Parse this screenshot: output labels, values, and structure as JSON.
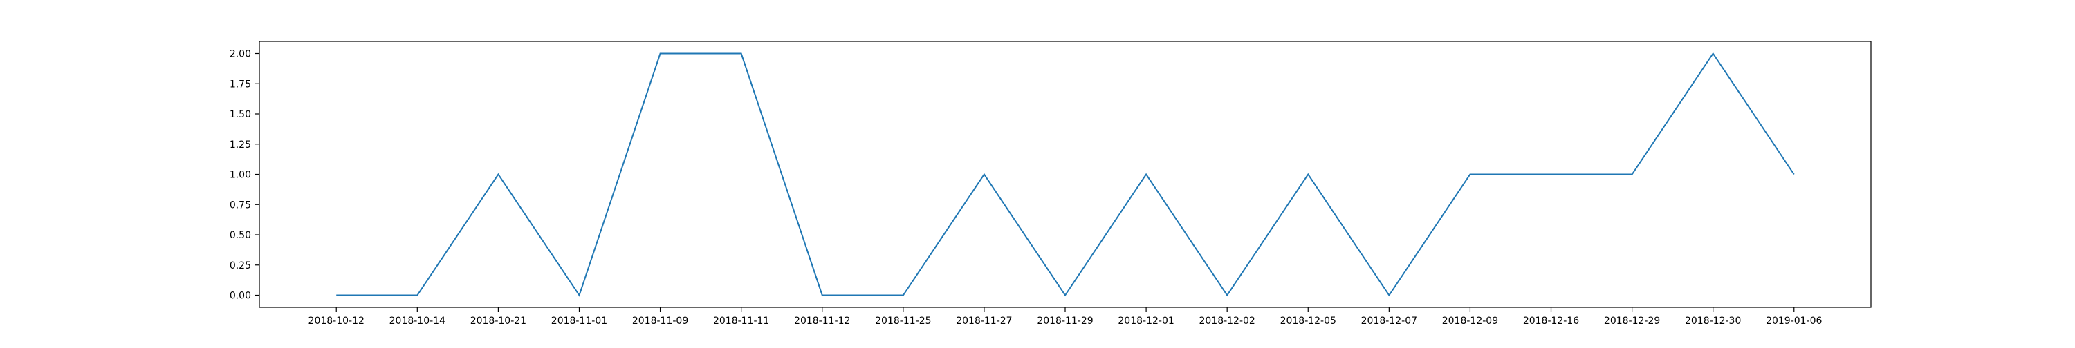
{
  "chart_data": {
    "type": "line",
    "title": "",
    "xlabel": "",
    "ylabel": "",
    "categories": [
      "2018-10-12",
      "2018-10-14",
      "2018-10-21",
      "2018-11-01",
      "2018-11-09",
      "2018-11-11",
      "2018-11-12",
      "2018-11-25",
      "2018-11-27",
      "2018-11-29",
      "2018-12-01",
      "2018-12-02",
      "2018-12-05",
      "2018-12-07",
      "2018-12-09",
      "2018-12-16",
      "2018-12-29",
      "2018-12-30",
      "2019-01-06"
    ],
    "series": [
      {
        "values": [
          0,
          0,
          1,
          0,
          2,
          2,
          0,
          0,
          1,
          0,
          1,
          0,
          1,
          0,
          1,
          1,
          1,
          2,
          1
        ],
        "color": "#1f77b4"
      }
    ],
    "ylim": [
      -0.1,
      2.1
    ],
    "yticks": [
      "0.00",
      "0.25",
      "0.50",
      "0.75",
      "1.00",
      "1.25",
      "1.50",
      "1.75",
      "2.00"
    ],
    "grid": false,
    "legend": "none"
  }
}
